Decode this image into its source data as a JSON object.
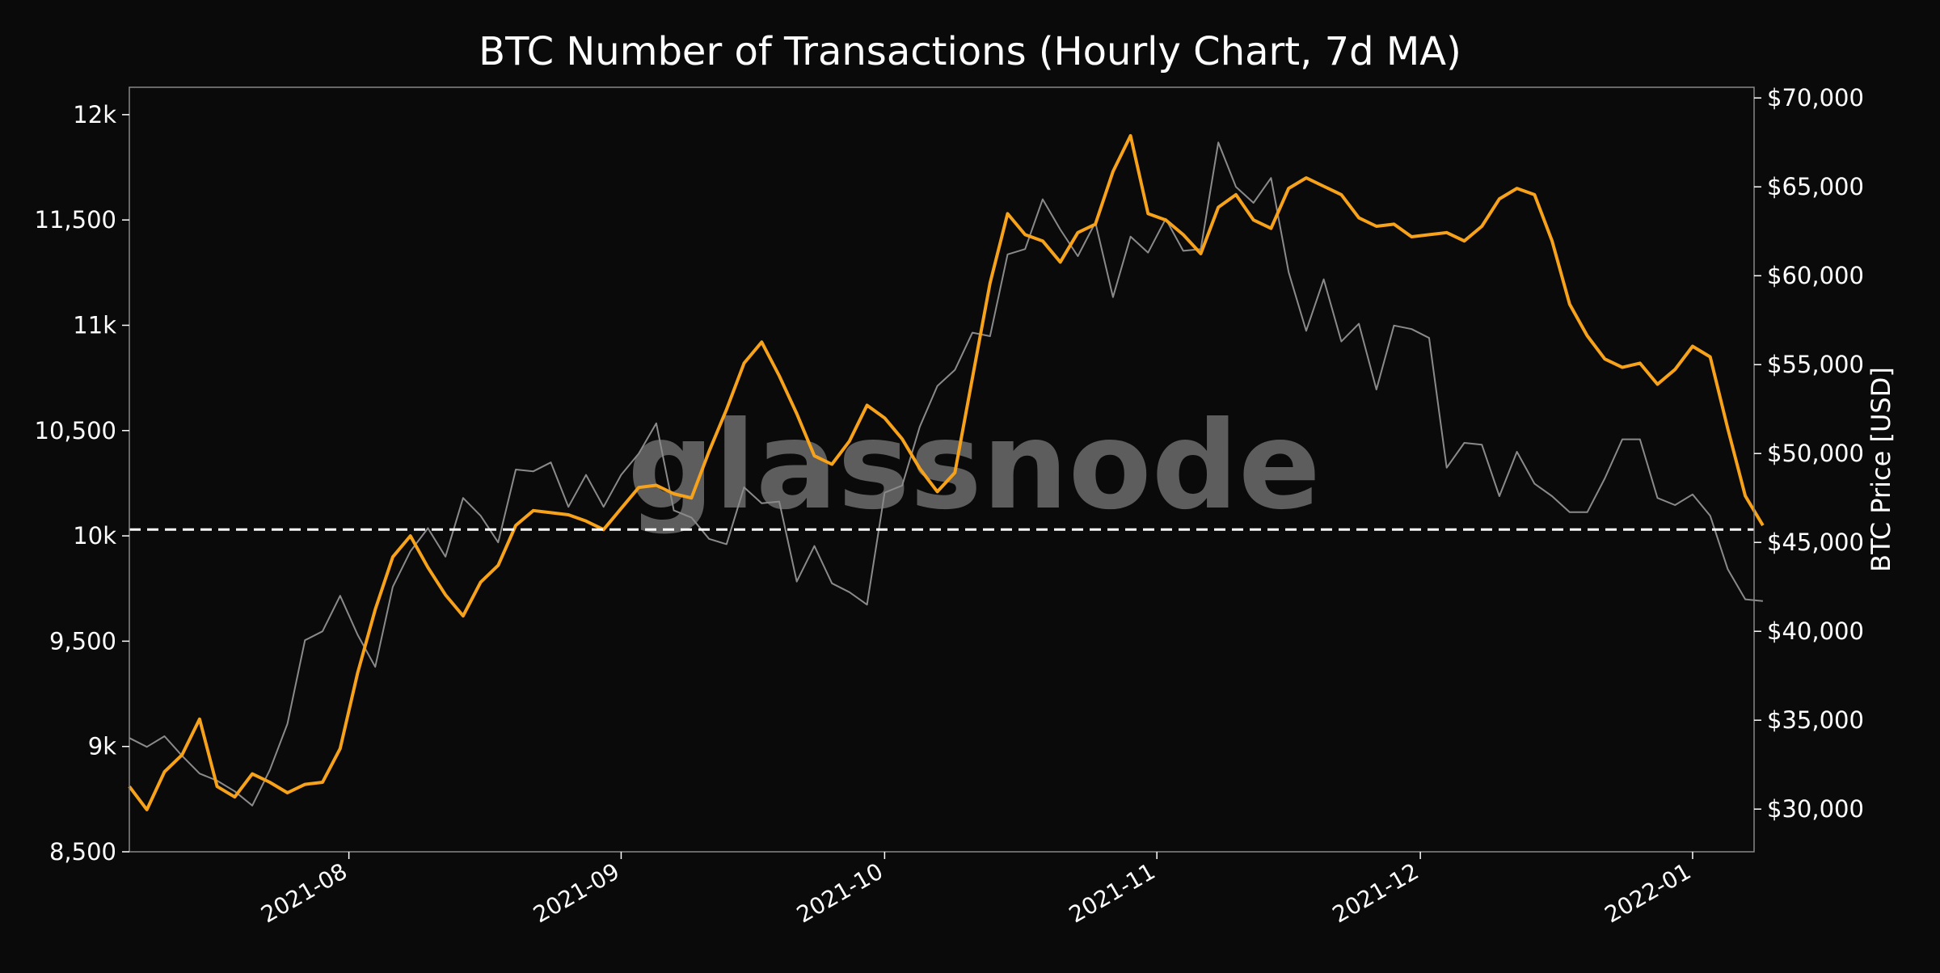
{
  "chart_data": {
    "type": "line",
    "title": "BTC Number of Transactions (Hourly Chart, 7d MA)",
    "xlabel": "",
    "ylabel_left": "",
    "ylabel_right": "BTC Price [USD]",
    "watermark": "glassnode",
    "x_range": [
      "2021-07-07",
      "2022-01-08"
    ],
    "x_ticks": [
      "2021-08",
      "2021-09",
      "2021-10",
      "2021-11",
      "2021-12",
      "2022-01"
    ],
    "y_left_range": [
      8500,
      12130
    ],
    "y_left_ticks": [
      "8,500",
      "9k",
      "9,500",
      "10k",
      "10,500",
      "11k",
      "11,500",
      "12k"
    ],
    "y_right_range": [
      27600,
      70600
    ],
    "y_right_ticks": [
      "$30,000",
      "$35,000",
      "$40,000",
      "$45,000",
      "$50,000",
      "$55,000",
      "$60,000",
      "$65,000",
      "$70,000"
    ],
    "reference_line": {
      "axis": "left",
      "value": 10030,
      "style": "dashed",
      "color": "#ffffff"
    },
    "grid": false,
    "colors": {
      "background": "#0a0a0a",
      "transactions": "#f7a21b",
      "price": "#8a8a8a",
      "axes": "#ffffff"
    },
    "series": [
      {
        "axis": "left",
        "points": [
          [
            "2021-07-07",
            8810
          ],
          [
            "2021-07-09",
            8700
          ],
          [
            "2021-07-11",
            8880
          ],
          [
            "2021-07-13",
            8960
          ],
          [
            "2021-07-15",
            9130
          ],
          [
            "2021-07-17",
            8810
          ],
          [
            "2021-07-19",
            8760
          ],
          [
            "2021-07-21",
            8870
          ],
          [
            "2021-07-23",
            8830
          ],
          [
            "2021-07-25",
            8780
          ],
          [
            "2021-07-27",
            8820
          ],
          [
            "2021-07-29",
            8830
          ],
          [
            "2021-07-31",
            8990
          ],
          [
            "2021-08-02",
            9350
          ],
          [
            "2021-08-04",
            9650
          ],
          [
            "2021-08-06",
            9900
          ],
          [
            "2021-08-08",
            10000
          ],
          [
            "2021-08-10",
            9850
          ],
          [
            "2021-08-12",
            9720
          ],
          [
            "2021-08-14",
            9620
          ],
          [
            "2021-08-16",
            9780
          ],
          [
            "2021-08-18",
            9860
          ],
          [
            "2021-08-20",
            10050
          ],
          [
            "2021-08-22",
            10120
          ],
          [
            "2021-08-24",
            10110
          ],
          [
            "2021-08-26",
            10100
          ],
          [
            "2021-08-28",
            10070
          ],
          [
            "2021-08-30",
            10030
          ],
          [
            "2021-09-01",
            10130
          ],
          [
            "2021-09-03",
            10230
          ],
          [
            "2021-09-05",
            10240
          ],
          [
            "2021-09-07",
            10200
          ],
          [
            "2021-09-09",
            10180
          ],
          [
            "2021-09-11",
            10400
          ],
          [
            "2021-09-13",
            10600
          ],
          [
            "2021-09-15",
            10820
          ],
          [
            "2021-09-17",
            10920
          ],
          [
            "2021-09-19",
            10760
          ],
          [
            "2021-09-21",
            10580
          ],
          [
            "2021-09-23",
            10380
          ],
          [
            "2021-09-25",
            10340
          ],
          [
            "2021-09-27",
            10450
          ],
          [
            "2021-09-29",
            10620
          ],
          [
            "2021-10-01",
            10560
          ],
          [
            "2021-10-03",
            10460
          ],
          [
            "2021-10-05",
            10320
          ],
          [
            "2021-10-07",
            10210
          ],
          [
            "2021-10-09",
            10300
          ],
          [
            "2021-10-11",
            10750
          ],
          [
            "2021-10-13",
            11200
          ],
          [
            "2021-10-15",
            11530
          ],
          [
            "2021-10-17",
            11430
          ],
          [
            "2021-10-19",
            11400
          ],
          [
            "2021-10-21",
            11300
          ],
          [
            "2021-10-23",
            11440
          ],
          [
            "2021-10-25",
            11480
          ],
          [
            "2021-10-27",
            11730
          ],
          [
            "2021-10-29",
            11900
          ],
          [
            "2021-10-31",
            11530
          ],
          [
            "2021-11-02",
            11500
          ],
          [
            "2021-11-04",
            11430
          ],
          [
            "2021-11-06",
            11340
          ],
          [
            "2021-11-08",
            11560
          ],
          [
            "2021-11-10",
            11620
          ],
          [
            "2021-11-12",
            11500
          ],
          [
            "2021-11-14",
            11460
          ],
          [
            "2021-11-16",
            11650
          ],
          [
            "2021-11-18",
            11700
          ],
          [
            "2021-11-20",
            11660
          ],
          [
            "2021-11-22",
            11620
          ],
          [
            "2021-11-24",
            11510
          ],
          [
            "2021-11-26",
            11470
          ],
          [
            "2021-11-28",
            11480
          ],
          [
            "2021-11-30",
            11420
          ],
          [
            "2021-12-02",
            11430
          ],
          [
            "2021-12-04",
            11440
          ],
          [
            "2021-12-06",
            11400
          ],
          [
            "2021-12-08",
            11470
          ],
          [
            "2021-12-10",
            11600
          ],
          [
            "2021-12-12",
            11650
          ],
          [
            "2021-12-14",
            11620
          ],
          [
            "2021-12-16",
            11400
          ],
          [
            "2021-12-18",
            11100
          ],
          [
            "2021-12-20",
            10950
          ],
          [
            "2021-12-22",
            10840
          ],
          [
            "2021-12-24",
            10800
          ],
          [
            "2021-12-26",
            10820
          ],
          [
            "2021-12-28",
            10720
          ],
          [
            "2021-12-30",
            10790
          ],
          [
            "2022-01-01",
            10900
          ],
          [
            "2022-01-03",
            10850
          ],
          [
            "2022-01-05",
            10510
          ],
          [
            "2022-01-07",
            10190
          ],
          [
            "2022-01-09",
            10050
          ]
        ]
      },
      {
        "axis": "right",
        "points": [
          [
            "2021-07-07",
            34000
          ],
          [
            "2021-07-09",
            33500
          ],
          [
            "2021-07-11",
            34100
          ],
          [
            "2021-07-13",
            33000
          ],
          [
            "2021-07-15",
            32000
          ],
          [
            "2021-07-17",
            31600
          ],
          [
            "2021-07-19",
            31000
          ],
          [
            "2021-07-21",
            30200
          ],
          [
            "2021-07-23",
            32200
          ],
          [
            "2021-07-25",
            34800
          ],
          [
            "2021-07-27",
            39500
          ],
          [
            "2021-07-29",
            40000
          ],
          [
            "2021-07-31",
            42000
          ],
          [
            "2021-08-02",
            39800
          ],
          [
            "2021-08-04",
            38000
          ],
          [
            "2021-08-06",
            42500
          ],
          [
            "2021-08-08",
            44500
          ],
          [
            "2021-08-10",
            45800
          ],
          [
            "2021-08-12",
            44200
          ],
          [
            "2021-08-14",
            47500
          ],
          [
            "2021-08-16",
            46500
          ],
          [
            "2021-08-18",
            45000
          ],
          [
            "2021-08-20",
            49100
          ],
          [
            "2021-08-22",
            49000
          ],
          [
            "2021-08-24",
            49500
          ],
          [
            "2021-08-26",
            47000
          ],
          [
            "2021-08-28",
            48800
          ],
          [
            "2021-08-30",
            47000
          ],
          [
            "2021-09-01",
            48800
          ],
          [
            "2021-09-03",
            50000
          ],
          [
            "2021-09-05",
            51700
          ],
          [
            "2021-09-07",
            46800
          ],
          [
            "2021-09-09",
            46400
          ],
          [
            "2021-09-11",
            45200
          ],
          [
            "2021-09-13",
            44900
          ],
          [
            "2021-09-15",
            48100
          ],
          [
            "2021-09-17",
            47200
          ],
          [
            "2021-09-19",
            47300
          ],
          [
            "2021-09-21",
            42800
          ],
          [
            "2021-09-23",
            44800
          ],
          [
            "2021-09-25",
            42700
          ],
          [
            "2021-09-27",
            42200
          ],
          [
            "2021-09-29",
            41500
          ],
          [
            "2021-10-01",
            47800
          ],
          [
            "2021-10-03",
            48200
          ],
          [
            "2021-10-05",
            51500
          ],
          [
            "2021-10-07",
            53800
          ],
          [
            "2021-10-09",
            54700
          ],
          [
            "2021-10-11",
            56800
          ],
          [
            "2021-10-13",
            56600
          ],
          [
            "2021-10-15",
            61200
          ],
          [
            "2021-10-17",
            61500
          ],
          [
            "2021-10-19",
            64300
          ],
          [
            "2021-10-21",
            62600
          ],
          [
            "2021-10-23",
            61100
          ],
          [
            "2021-10-25",
            63000
          ],
          [
            "2021-10-27",
            58800
          ],
          [
            "2021-10-29",
            62200
          ],
          [
            "2021-10-31",
            61300
          ],
          [
            "2021-11-02",
            63200
          ],
          [
            "2021-11-04",
            61400
          ],
          [
            "2021-11-06",
            61500
          ],
          [
            "2021-11-08",
            67500
          ],
          [
            "2021-11-10",
            65000
          ],
          [
            "2021-11-12",
            64100
          ],
          [
            "2021-11-14",
            65500
          ],
          [
            "2021-11-16",
            60200
          ],
          [
            "2021-11-18",
            56900
          ],
          [
            "2021-11-20",
            59800
          ],
          [
            "2021-11-22",
            56300
          ],
          [
            "2021-11-24",
            57300
          ],
          [
            "2021-11-26",
            53600
          ],
          [
            "2021-11-28",
            57200
          ],
          [
            "2021-11-30",
            57000
          ],
          [
            "2021-12-02",
            56500
          ],
          [
            "2021-12-04",
            49200
          ],
          [
            "2021-12-06",
            50600
          ],
          [
            "2021-12-08",
            50500
          ],
          [
            "2021-12-10",
            47600
          ],
          [
            "2021-12-12",
            50100
          ],
          [
            "2021-12-14",
            48300
          ],
          [
            "2021-12-16",
            47600
          ],
          [
            "2021-12-18",
            46700
          ],
          [
            "2021-12-20",
            46700
          ],
          [
            "2021-12-22",
            48600
          ],
          [
            "2021-12-24",
            50800
          ],
          [
            "2021-12-26",
            50800
          ],
          [
            "2021-12-28",
            47500
          ],
          [
            "2021-12-30",
            47100
          ],
          [
            "2022-01-01",
            47700
          ],
          [
            "2022-01-03",
            46500
          ],
          [
            "2022-01-05",
            43500
          ],
          [
            "2022-01-07",
            41800
          ],
          [
            "2022-01-09",
            41700
          ]
        ]
      }
    ]
  }
}
